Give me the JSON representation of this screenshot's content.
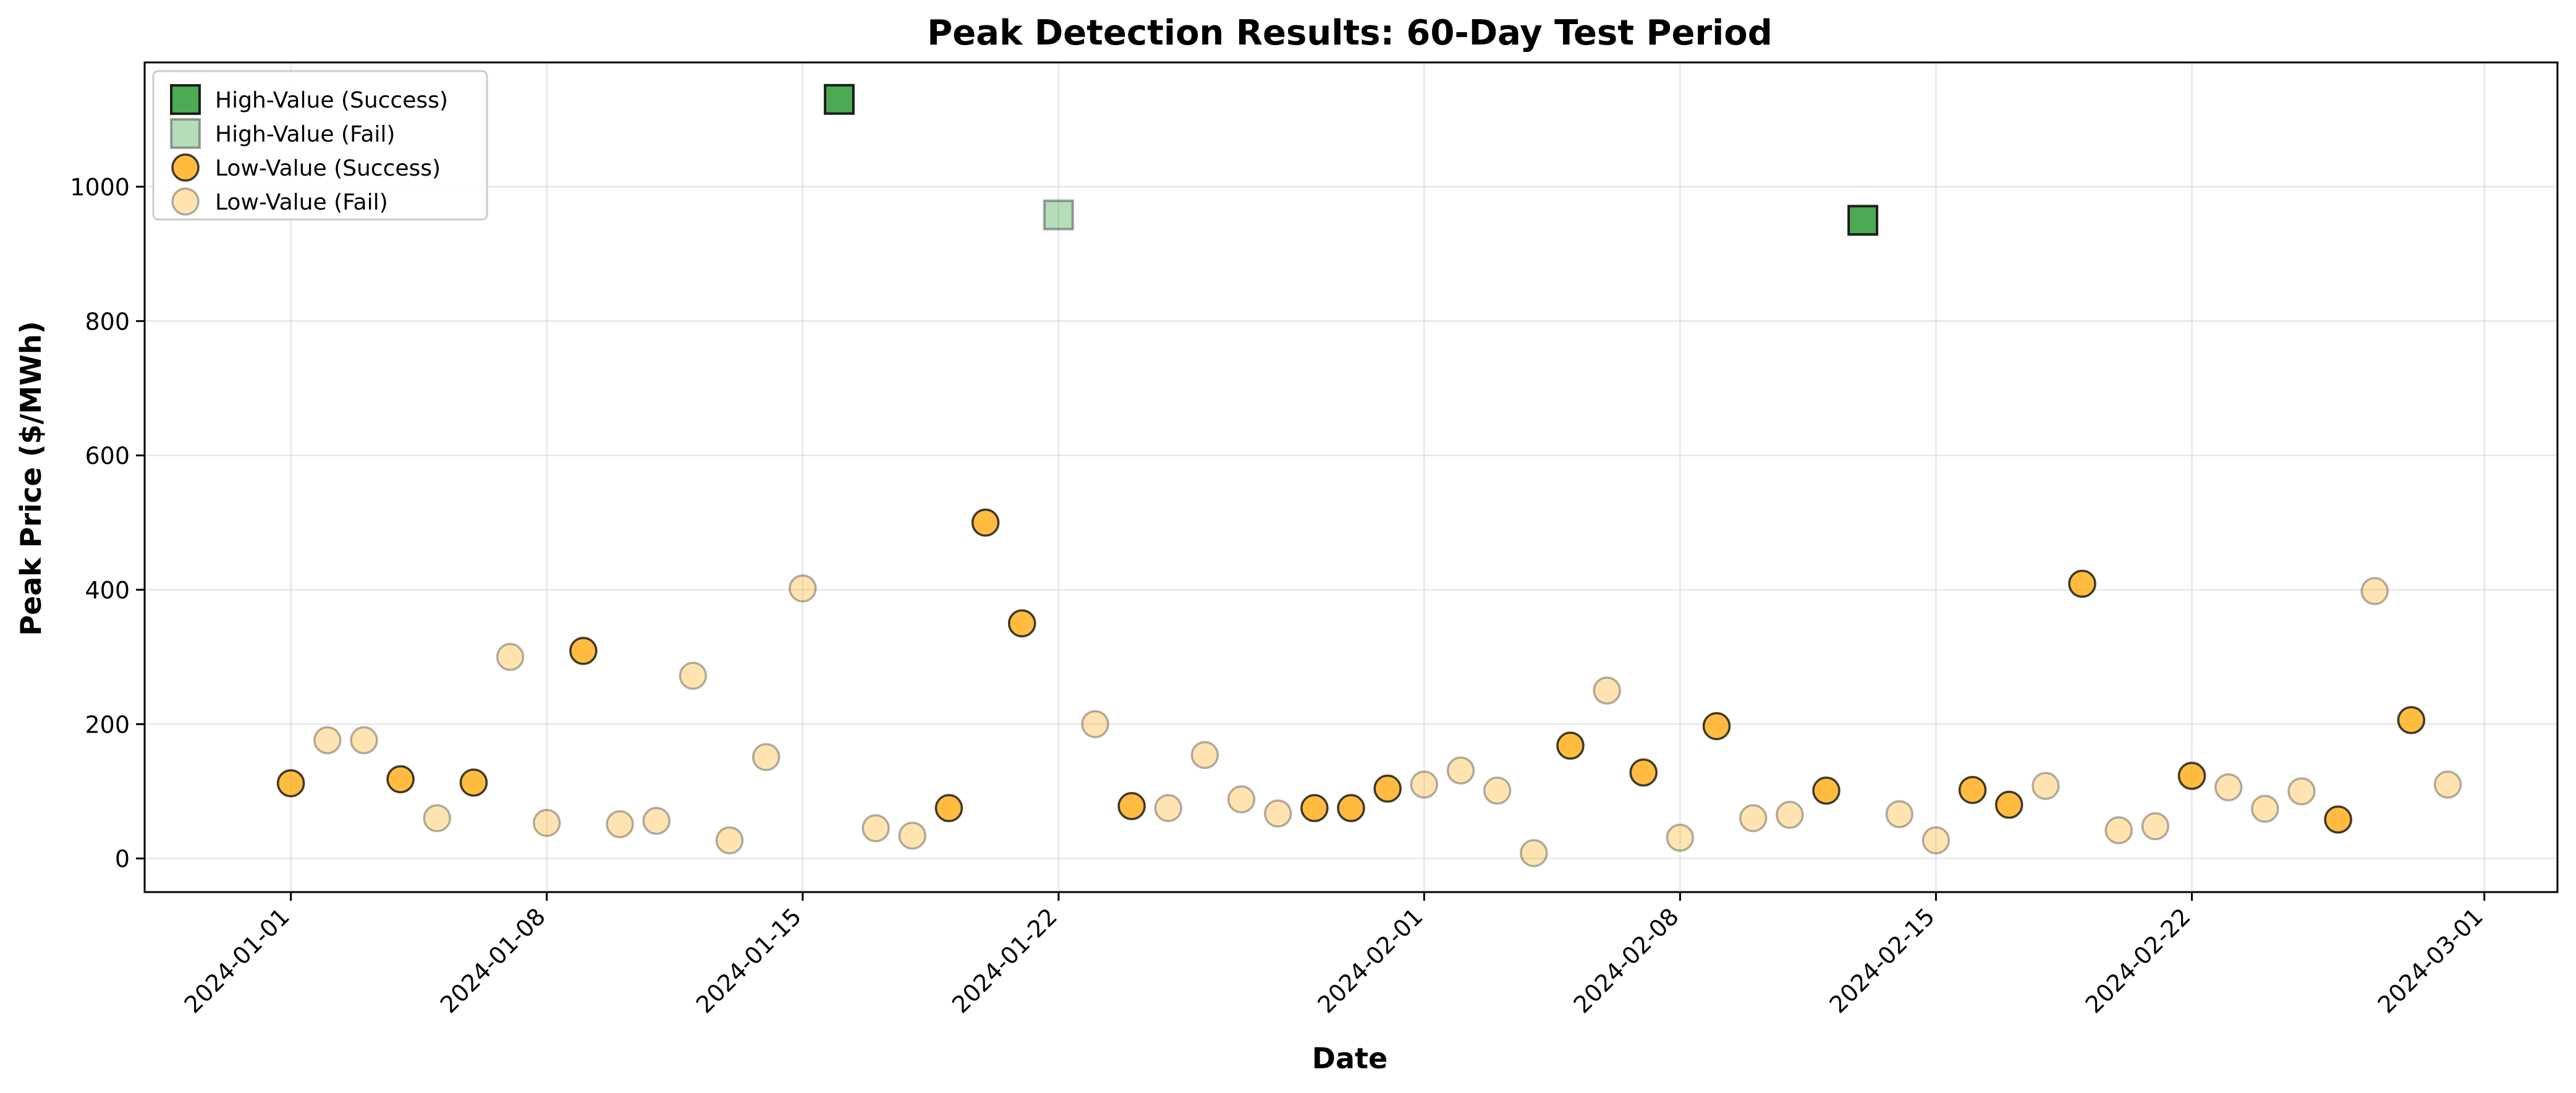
{
  "chart_data": {
    "type": "scatter",
    "title": "Peak Detection Results: 60-Day Test Period",
    "xlabel": "Date",
    "ylabel": "Peak Price ($/MWh)",
    "xlim": [
      "2023-12-28",
      "2024-03-03"
    ],
    "ylim": [
      -50,
      1185
    ],
    "x_ticks": [
      "2024-01-01",
      "2024-01-08",
      "2024-01-15",
      "2024-01-22",
      "2024-02-01",
      "2024-02-08",
      "2024-02-15",
      "2024-02-22",
      "2024-03-01"
    ],
    "y_ticks": [
      0,
      200,
      400,
      600,
      800,
      1000
    ],
    "grid": true,
    "legend_position": "top-left",
    "series": [
      {
        "name": "High-Value (Success)",
        "marker": "square",
        "color": "#2e9a36",
        "alpha": 0.85,
        "points": [
          {
            "date": "2024-01-16",
            "price": 1130
          },
          {
            "date": "2024-02-13",
            "price": 950
          }
        ]
      },
      {
        "name": "High-Value (Fail)",
        "marker": "square",
        "color": "#2e9a36",
        "alpha": 0.35,
        "points": [
          {
            "date": "2024-01-22",
            "price": 958
          }
        ]
      },
      {
        "name": "Low-Value (Success)",
        "marker": "circle",
        "color": "#ffa500",
        "alpha": 0.75,
        "points": [
          {
            "date": "2024-01-01",
            "price": 112
          },
          {
            "date": "2024-01-04",
            "price": 118
          },
          {
            "date": "2024-01-06",
            "price": 113
          },
          {
            "date": "2024-01-09",
            "price": 309
          },
          {
            "date": "2024-01-19",
            "price": 75
          },
          {
            "date": "2024-01-20",
            "price": 500
          },
          {
            "date": "2024-01-21",
            "price": 350
          },
          {
            "date": "2024-01-24",
            "price": 78
          },
          {
            "date": "2024-01-29",
            "price": 75
          },
          {
            "date": "2024-01-30",
            "price": 75
          },
          {
            "date": "2024-01-31",
            "price": 104
          },
          {
            "date": "2024-02-05",
            "price": 168
          },
          {
            "date": "2024-02-07",
            "price": 128
          },
          {
            "date": "2024-02-09",
            "price": 197
          },
          {
            "date": "2024-02-12",
            "price": 101
          },
          {
            "date": "2024-02-16",
            "price": 102
          },
          {
            "date": "2024-02-17",
            "price": 80
          },
          {
            "date": "2024-02-19",
            "price": 409
          },
          {
            "date": "2024-02-22",
            "price": 123
          },
          {
            "date": "2024-02-26",
            "price": 58
          },
          {
            "date": "2024-02-28",
            "price": 206
          }
        ]
      },
      {
        "name": "Low-Value (Fail)",
        "marker": "circle",
        "color": "#ffa500",
        "alpha": 0.3,
        "points": [
          {
            "date": "2024-01-02",
            "price": 176
          },
          {
            "date": "2024-01-03",
            "price": 176
          },
          {
            "date": "2024-01-05",
            "price": 60
          },
          {
            "date": "2024-01-07",
            "price": 300
          },
          {
            "date": "2024-01-08",
            "price": 53
          },
          {
            "date": "2024-01-10",
            "price": 51
          },
          {
            "date": "2024-01-11",
            "price": 56
          },
          {
            "date": "2024-01-12",
            "price": 272
          },
          {
            "date": "2024-01-13",
            "price": 27
          },
          {
            "date": "2024-01-14",
            "price": 151
          },
          {
            "date": "2024-01-15",
            "price": 402
          },
          {
            "date": "2024-01-17",
            "price": 45
          },
          {
            "date": "2024-01-18",
            "price": 34
          },
          {
            "date": "2024-01-23",
            "price": 200
          },
          {
            "date": "2024-01-25",
            "price": 75
          },
          {
            "date": "2024-01-26",
            "price": 154
          },
          {
            "date": "2024-01-27",
            "price": 88
          },
          {
            "date": "2024-01-28",
            "price": 67
          },
          {
            "date": "2024-02-01",
            "price": 110
          },
          {
            "date": "2024-02-02",
            "price": 131
          },
          {
            "date": "2024-02-03",
            "price": 101
          },
          {
            "date": "2024-02-04",
            "price": 8
          },
          {
            "date": "2024-02-06",
            "price": 250
          },
          {
            "date": "2024-02-08",
            "price": 31
          },
          {
            "date": "2024-02-10",
            "price": 60
          },
          {
            "date": "2024-02-11",
            "price": 65
          },
          {
            "date": "2024-02-14",
            "price": 66
          },
          {
            "date": "2024-02-15",
            "price": 27
          },
          {
            "date": "2024-02-18",
            "price": 108
          },
          {
            "date": "2024-02-20",
            "price": 42
          },
          {
            "date": "2024-02-21",
            "price": 48
          },
          {
            "date": "2024-02-23",
            "price": 106
          },
          {
            "date": "2024-02-24",
            "price": 74
          },
          {
            "date": "2024-02-25",
            "price": 100
          },
          {
            "date": "2024-02-27",
            "price": 398
          },
          {
            "date": "2024-02-29",
            "price": 110
          }
        ]
      }
    ]
  }
}
